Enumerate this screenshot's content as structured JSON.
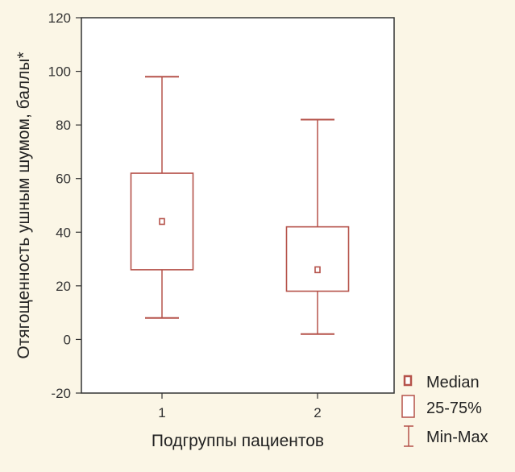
{
  "chart_data": {
    "type": "boxplot",
    "xlabel": "Подгруппы пациентов",
    "ylabel": "Отягощенность ушным шумом, баллы*",
    "ylim": [
      -20,
      120
    ],
    "yticks": [
      -20,
      0,
      20,
      40,
      60,
      80,
      100,
      120
    ],
    "categories": [
      "1",
      "2"
    ],
    "groups": [
      {
        "category": "1",
        "min": 8,
        "q1": 26,
        "median": 44,
        "q3": 62,
        "max": 98
      },
      {
        "category": "2",
        "min": 2,
        "q1": 18,
        "median": 26,
        "q3": 42,
        "max": 82
      }
    ],
    "legend": [
      {
        "key": "median",
        "label": "Median"
      },
      {
        "key": "box",
        "label": "25-75%"
      },
      {
        "key": "whisker",
        "label": "Min-Max"
      }
    ],
    "colors": {
      "box": "#b5524a",
      "axis": "#333333",
      "background": "#fbf6e6",
      "plot_background": "#ffffff"
    },
    "grid": false,
    "legend_position": "bottom-right"
  }
}
